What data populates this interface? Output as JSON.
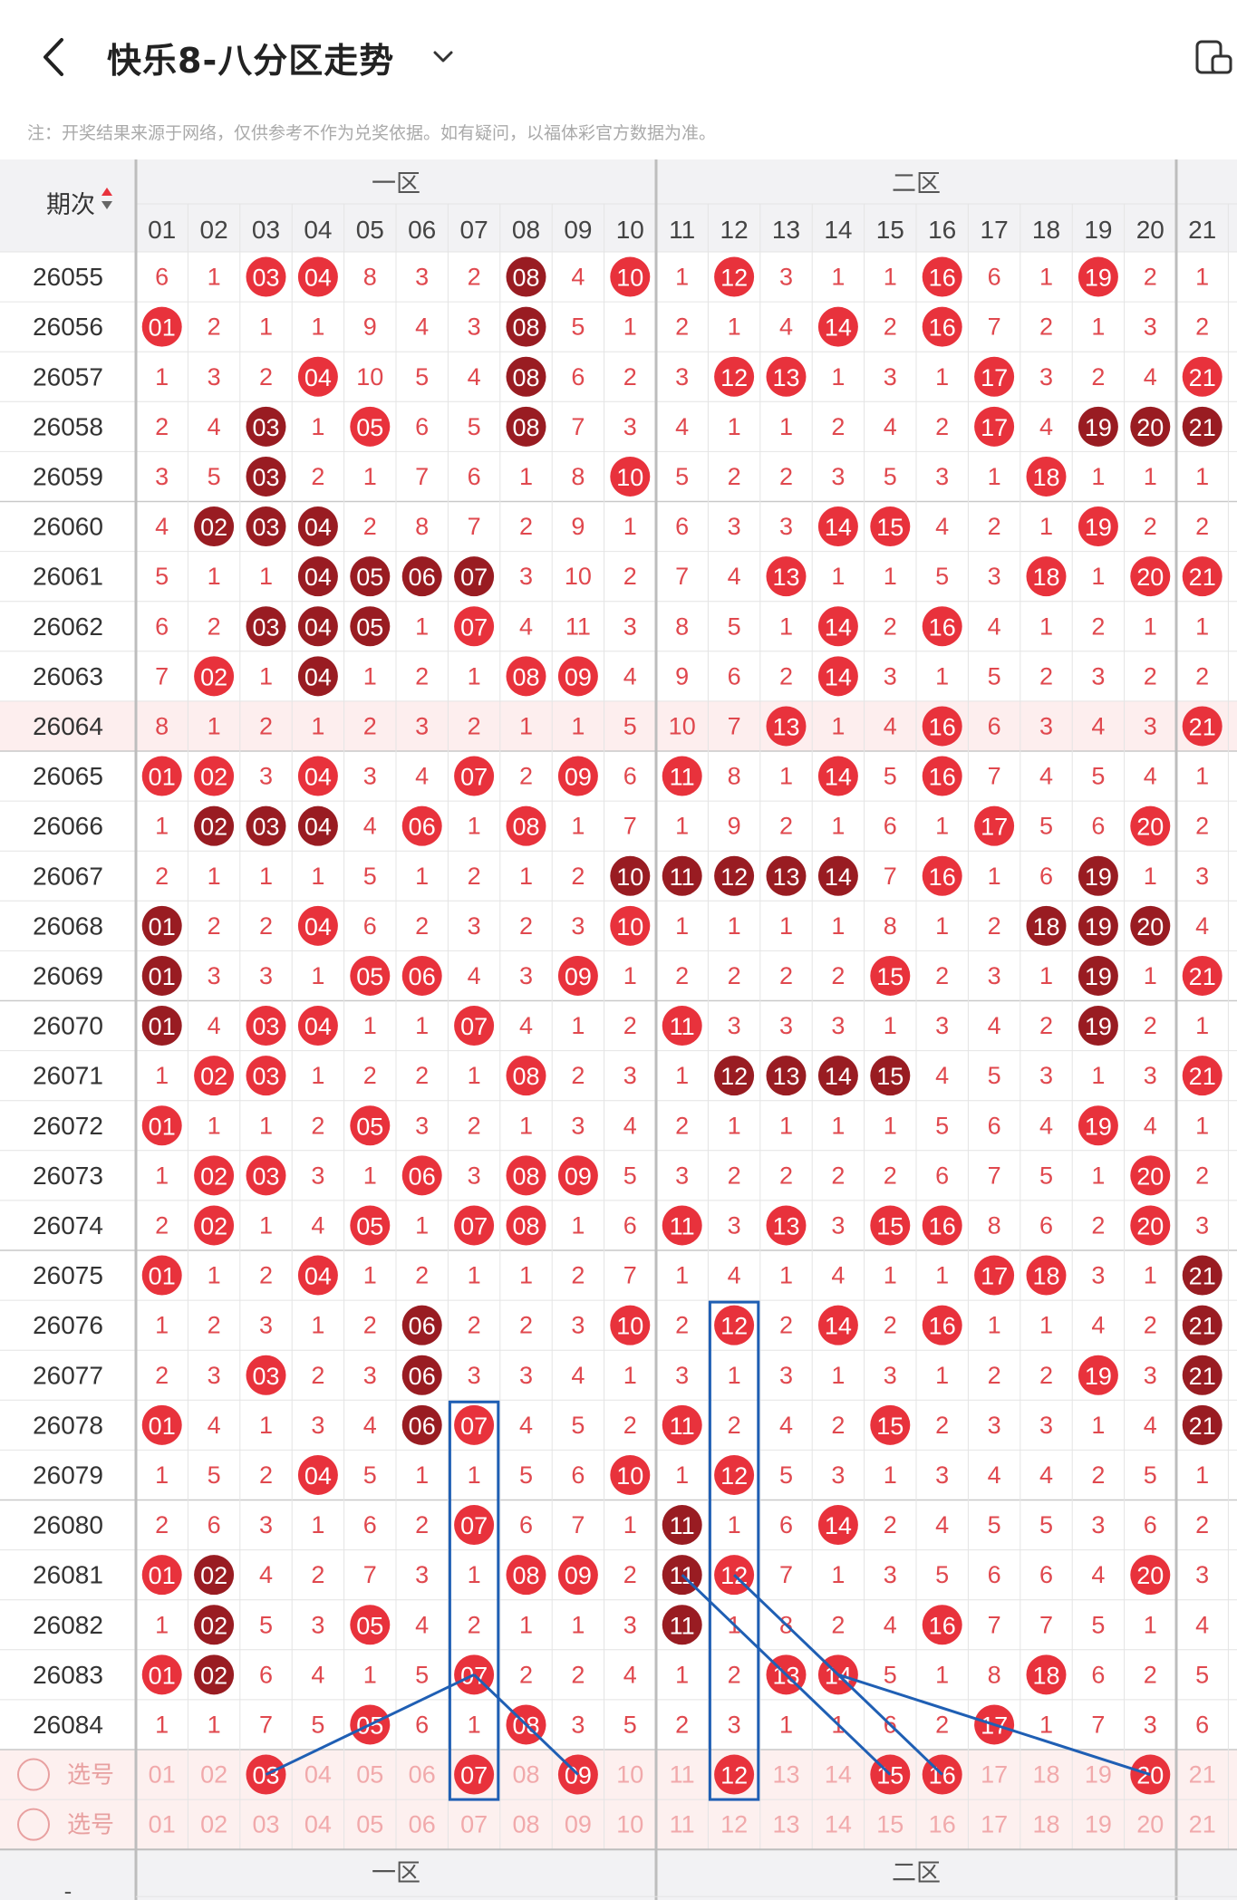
{
  "header": {
    "title": "快乐8-八分区走势",
    "notice": "注：开奖结果来源于网络，仅供参考不作为兑奖依据。如有疑问，以福体彩官方数据为准。"
  },
  "table": {
    "period_header": "期次",
    "zones": [
      "一区",
      "二区"
    ],
    "columns": [
      "01",
      "02",
      "03",
      "04",
      "05",
      "06",
      "07",
      "08",
      "09",
      "10",
      "11",
      "12",
      "13",
      "14",
      "15",
      "16",
      "17",
      "18",
      "19",
      "20",
      "21"
    ],
    "rows": [
      {
        "period": "26055",
        "cells": [
          "6",
          "1",
          "03",
          "04",
          "8",
          "3",
          "2",
          "08",
          "4",
          "10",
          "1",
          "12",
          "3",
          "1",
          "1",
          "16",
          "6",
          "1",
          "19",
          "2",
          "1"
        ],
        "dark": [
          7
        ]
      },
      {
        "period": "26056",
        "cells": [
          "01",
          "2",
          "1",
          "1",
          "9",
          "4",
          "3",
          "08",
          "5",
          "1",
          "2",
          "1",
          "4",
          "14",
          "2",
          "16",
          "7",
          "2",
          "1",
          "3",
          "2"
        ],
        "dark": [
          7
        ]
      },
      {
        "period": "26057",
        "cells": [
          "1",
          "3",
          "2",
          "04",
          "10",
          "5",
          "4",
          "08",
          "6",
          "2",
          "3",
          "12",
          "13",
          "1",
          "3",
          "1",
          "17",
          "3",
          "2",
          "4",
          "21"
        ],
        "dark": [
          7
        ]
      },
      {
        "period": "26058",
        "cells": [
          "2",
          "4",
          "03",
          "1",
          "05",
          "6",
          "5",
          "08",
          "7",
          "3",
          "4",
          "1",
          "1",
          "2",
          "4",
          "2",
          "17",
          "4",
          "19",
          "20",
          "21"
        ],
        "dark": [
          2,
          7,
          18,
          19,
          20
        ]
      },
      {
        "period": "26059",
        "cells": [
          "3",
          "5",
          "03",
          "2",
          "1",
          "7",
          "6",
          "1",
          "8",
          "10",
          "5",
          "2",
          "2",
          "3",
          "5",
          "3",
          "1",
          "18",
          "1",
          "1",
          "1"
        ],
        "dark": [
          2
        ]
      },
      {
        "period": "26060",
        "cells": [
          "4",
          "02",
          "03",
          "04",
          "2",
          "8",
          "7",
          "2",
          "9",
          "1",
          "6",
          "3",
          "3",
          "14",
          "15",
          "4",
          "2",
          "1",
          "19",
          "2",
          "2"
        ],
        "dark": [
          1,
          2,
          3
        ]
      },
      {
        "period": "26061",
        "cells": [
          "5",
          "1",
          "1",
          "04",
          "05",
          "06",
          "07",
          "3",
          "10",
          "2",
          "7",
          "4",
          "13",
          "1",
          "1",
          "5",
          "3",
          "18",
          "1",
          "20",
          "21"
        ],
        "dark": [
          3,
          4,
          5,
          6
        ]
      },
      {
        "period": "26062",
        "cells": [
          "6",
          "2",
          "03",
          "04",
          "05",
          "1",
          "07",
          "4",
          "11",
          "3",
          "8",
          "5",
          "1",
          "14",
          "2",
          "16",
          "4",
          "1",
          "2",
          "1",
          "1"
        ],
        "dark": [
          2,
          3,
          4
        ]
      },
      {
        "period": "26063",
        "cells": [
          "7",
          "02",
          "1",
          "04",
          "1",
          "2",
          "1",
          "08",
          "09",
          "4",
          "9",
          "6",
          "2",
          "14",
          "3",
          "1",
          "5",
          "2",
          "3",
          "2",
          "2"
        ],
        "dark": [
          3
        ]
      },
      {
        "period": "26064",
        "cells": [
          "8",
          "1",
          "2",
          "1",
          "2",
          "3",
          "2",
          "1",
          "1",
          "5",
          "10",
          "7",
          "13",
          "1",
          "4",
          "16",
          "6",
          "3",
          "4",
          "3",
          "21"
        ],
        "dark": []
      },
      {
        "period": "26065",
        "cells": [
          "01",
          "02",
          "3",
          "04",
          "3",
          "4",
          "07",
          "2",
          "09",
          "6",
          "11",
          "8",
          "1",
          "14",
          "5",
          "16",
          "7",
          "4",
          "5",
          "4",
          "1"
        ],
        "dark": []
      },
      {
        "period": "26066",
        "cells": [
          "1",
          "02",
          "03",
          "04",
          "4",
          "06",
          "1",
          "08",
          "1",
          "7",
          "1",
          "9",
          "2",
          "1",
          "6",
          "1",
          "17",
          "5",
          "6",
          "20",
          "2"
        ],
        "dark": [
          1,
          2,
          3
        ]
      },
      {
        "period": "26067",
        "cells": [
          "2",
          "1",
          "1",
          "1",
          "5",
          "1",
          "2",
          "1",
          "2",
          "10",
          "11",
          "12",
          "13",
          "14",
          "7",
          "16",
          "1",
          "6",
          "19",
          "1",
          "3"
        ],
        "dark": [
          9,
          10,
          11,
          12,
          13,
          18
        ]
      },
      {
        "period": "26068",
        "cells": [
          "01",
          "2",
          "2",
          "04",
          "6",
          "2",
          "3",
          "2",
          "3",
          "10",
          "1",
          "1",
          "1",
          "1",
          "8",
          "1",
          "2",
          "18",
          "19",
          "20",
          "4"
        ],
        "dark": [
          0,
          17,
          18,
          19
        ]
      },
      {
        "period": "26069",
        "cells": [
          "01",
          "3",
          "3",
          "1",
          "05",
          "06",
          "4",
          "3",
          "09",
          "1",
          "2",
          "2",
          "2",
          "2",
          "15",
          "2",
          "3",
          "1",
          "19",
          "1",
          "21"
        ],
        "dark": [
          0,
          18
        ]
      },
      {
        "period": "26070",
        "cells": [
          "01",
          "4",
          "03",
          "04",
          "1",
          "1",
          "07",
          "4",
          "1",
          "2",
          "11",
          "3",
          "3",
          "3",
          "1",
          "3",
          "4",
          "2",
          "19",
          "2",
          "1"
        ],
        "dark": [
          0,
          18
        ]
      },
      {
        "period": "26071",
        "cells": [
          "1",
          "02",
          "03",
          "1",
          "2",
          "2",
          "1",
          "08",
          "2",
          "3",
          "1",
          "12",
          "13",
          "14",
          "15",
          "4",
          "5",
          "3",
          "1",
          "3",
          "21"
        ],
        "dark": [
          11,
          12,
          13,
          14
        ]
      },
      {
        "period": "26072",
        "cells": [
          "01",
          "1",
          "1",
          "2",
          "05",
          "3",
          "2",
          "1",
          "3",
          "4",
          "2",
          "1",
          "1",
          "1",
          "1",
          "5",
          "6",
          "4",
          "19",
          "4",
          "1"
        ],
        "dark": []
      },
      {
        "period": "26073",
        "cells": [
          "1",
          "02",
          "03",
          "3",
          "1",
          "06",
          "3",
          "08",
          "09",
          "5",
          "3",
          "2",
          "2",
          "2",
          "2",
          "6",
          "7",
          "5",
          "1",
          "20",
          "2"
        ],
        "dark": []
      },
      {
        "period": "26074",
        "cells": [
          "2",
          "02",
          "1",
          "4",
          "05",
          "1",
          "07",
          "08",
          "1",
          "6",
          "11",
          "3",
          "13",
          "3",
          "15",
          "16",
          "8",
          "6",
          "2",
          "20",
          "3"
        ],
        "dark": []
      },
      {
        "period": "26075",
        "cells": [
          "01",
          "1",
          "2",
          "04",
          "1",
          "2",
          "1",
          "1",
          "2",
          "7",
          "1",
          "4",
          "1",
          "4",
          "1",
          "1",
          "17",
          "18",
          "3",
          "1",
          "21"
        ],
        "dark": [
          20
        ]
      },
      {
        "period": "26076",
        "cells": [
          "1",
          "2",
          "3",
          "1",
          "2",
          "06",
          "2",
          "2",
          "3",
          "10",
          "2",
          "12",
          "2",
          "14",
          "2",
          "16",
          "1",
          "1",
          "4",
          "2",
          "21"
        ],
        "dark": [
          5,
          20
        ]
      },
      {
        "period": "26077",
        "cells": [
          "2",
          "3",
          "03",
          "2",
          "3",
          "06",
          "3",
          "3",
          "4",
          "1",
          "3",
          "1",
          "3",
          "1",
          "3",
          "1",
          "2",
          "2",
          "19",
          "3",
          "21"
        ],
        "dark": [
          5,
          20
        ]
      },
      {
        "period": "26078",
        "cells": [
          "01",
          "4",
          "1",
          "3",
          "4",
          "06",
          "07",
          "4",
          "5",
          "2",
          "11",
          "2",
          "4",
          "2",
          "15",
          "2",
          "3",
          "3",
          "1",
          "4",
          "21"
        ],
        "dark": [
          5,
          20
        ]
      },
      {
        "period": "26079",
        "cells": [
          "1",
          "5",
          "2",
          "04",
          "5",
          "1",
          "1",
          "5",
          "6",
          "10",
          "1",
          "12",
          "5",
          "3",
          "1",
          "3",
          "4",
          "4",
          "2",
          "5",
          "1"
        ],
        "dark": []
      },
      {
        "period": "26080",
        "cells": [
          "2",
          "6",
          "3",
          "1",
          "6",
          "2",
          "07",
          "6",
          "7",
          "1",
          "11",
          "1",
          "6",
          "14",
          "2",
          "4",
          "5",
          "5",
          "3",
          "6",
          "2"
        ],
        "dark": [
          10
        ]
      },
      {
        "period": "26081",
        "cells": [
          "01",
          "02",
          "4",
          "2",
          "7",
          "3",
          "1",
          "08",
          "09",
          "2",
          "11",
          "12",
          "7",
          "1",
          "3",
          "5",
          "6",
          "6",
          "4",
          "20",
          "3"
        ],
        "dark": [
          1,
          10
        ]
      },
      {
        "period": "26082",
        "cells": [
          "1",
          "02",
          "5",
          "3",
          "05",
          "4",
          "2",
          "1",
          "1",
          "3",
          "11",
          "1",
          "8",
          "2",
          "4",
          "16",
          "7",
          "7",
          "5",
          "1",
          "4"
        ],
        "dark": [
          1,
          10
        ]
      },
      {
        "period": "26083",
        "cells": [
          "01",
          "02",
          "6",
          "4",
          "1",
          "5",
          "07",
          "2",
          "2",
          "4",
          "1",
          "2",
          "13",
          "14",
          "5",
          "1",
          "8",
          "18",
          "6",
          "2",
          "5"
        ],
        "dark": [
          1
        ]
      },
      {
        "period": "26084",
        "cells": [
          "1",
          "1",
          "7",
          "5",
          "05",
          "6",
          "1",
          "08",
          "3",
          "5",
          "2",
          "3",
          "1",
          "1",
          "6",
          "2",
          "17",
          "1",
          "7",
          "3",
          "6"
        ],
        "dark": []
      }
    ],
    "select_label": "选号",
    "select_rows": [
      {
        "selected": [
          2,
          6,
          8,
          11,
          14,
          15,
          19
        ]
      },
      {
        "selected": []
      }
    ]
  },
  "footer": {
    "period_placeholder": "-"
  },
  "colors": {
    "red": "#e8323c",
    "dark": "#991c22",
    "num": "#e0484e",
    "grid": "#e4e4e4",
    "zone_sep": "#bdbdbd",
    "header_bg": "#f2f2f4",
    "highlight_row": "#fdeeee",
    "select_bg": "#fdf0ef",
    "annotation": "#1f5fb4"
  }
}
